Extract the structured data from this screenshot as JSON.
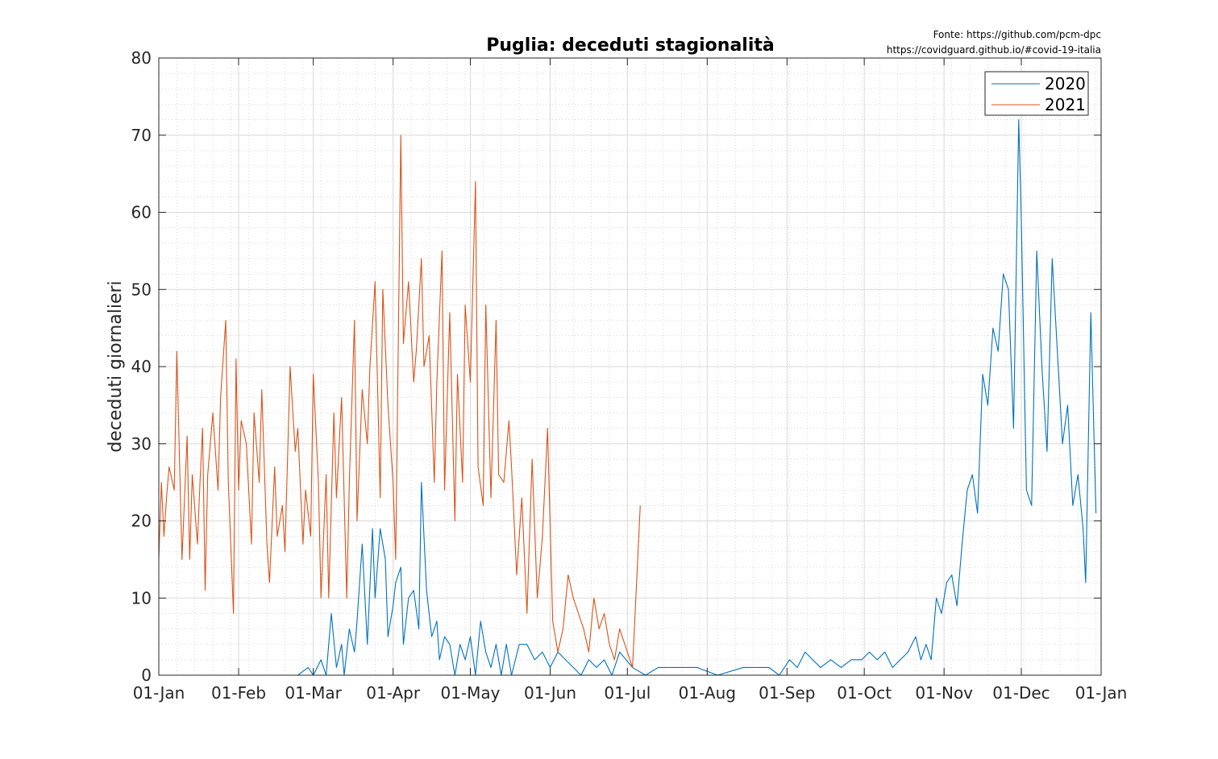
{
  "chart_data": {
    "type": "line",
    "title": "Puglia: deceduti stagionalità",
    "source_lines": [
      "Fonte: https://github.com/pcm-dpc",
      "https://covidguard.github.io/#covid-19-italia"
    ],
    "ylabel": "deceduti giornalieri",
    "xlabel": "",
    "ylim": [
      0,
      80
    ],
    "yticks": [
      0,
      10,
      20,
      30,
      40,
      50,
      60,
      70,
      80
    ],
    "xlim": [
      "2020-01-01",
      "2021-01-01"
    ],
    "xticks": [
      "2020-01-01",
      "2020-02-01",
      "2020-03-01",
      "2020-04-01",
      "2020-05-01",
      "2020-06-01",
      "2020-07-01",
      "2020-08-01",
      "2020-09-01",
      "2020-10-01",
      "2020-11-01",
      "2020-12-01",
      "2021-01-01"
    ],
    "xtick_labels": [
      "01-Jan",
      "01-Feb",
      "01-Mar",
      "01-Apr",
      "01-May",
      "01-Jun",
      "01-Jul",
      "01-Aug",
      "01-Sep",
      "01-Oct",
      "01-Nov",
      "01-Dec",
      "01-Jan"
    ],
    "grid": true,
    "minor_grid": true,
    "legend_position": "top-right",
    "series": [
      {
        "name": "2020",
        "color": "#0072BD",
        "x": [
          "2020-02-24",
          "2020-02-28",
          "2020-03-01",
          "2020-03-04",
          "2020-03-06",
          "2020-03-08",
          "2020-03-10",
          "2020-03-12",
          "2020-03-13",
          "2020-03-15",
          "2020-03-17",
          "2020-03-18",
          "2020-03-20",
          "2020-03-22",
          "2020-03-24",
          "2020-03-25",
          "2020-03-27",
          "2020-03-29",
          "2020-03-30",
          "2020-04-01",
          "2020-04-02",
          "2020-04-04",
          "2020-04-05",
          "2020-04-07",
          "2020-04-09",
          "2020-04-11",
          "2020-04-12",
          "2020-04-14",
          "2020-04-16",
          "2020-04-18",
          "2020-04-19",
          "2020-04-21",
          "2020-04-23",
          "2020-04-25",
          "2020-04-27",
          "2020-04-29",
          "2020-05-01",
          "2020-05-03",
          "2020-05-05",
          "2020-05-07",
          "2020-05-09",
          "2020-05-11",
          "2020-05-13",
          "2020-05-15",
          "2020-05-17",
          "2020-05-20",
          "2020-05-23",
          "2020-05-26",
          "2020-05-29",
          "2020-06-01",
          "2020-06-04",
          "2020-06-07",
          "2020-06-10",
          "2020-06-13",
          "2020-06-16",
          "2020-06-19",
          "2020-06-22",
          "2020-06-25",
          "2020-06-28",
          "2020-07-03",
          "2020-07-08",
          "2020-07-13",
          "2020-07-20",
          "2020-07-28",
          "2020-08-05",
          "2020-08-15",
          "2020-08-25",
          "2020-08-29",
          "2020-09-02",
          "2020-09-05",
          "2020-09-08",
          "2020-09-11",
          "2020-09-14",
          "2020-09-18",
          "2020-09-22",
          "2020-09-26",
          "2020-09-30",
          "2020-10-03",
          "2020-10-06",
          "2020-10-09",
          "2020-10-12",
          "2020-10-15",
          "2020-10-18",
          "2020-10-21",
          "2020-10-23",
          "2020-10-25",
          "2020-10-27",
          "2020-10-29",
          "2020-10-31",
          "2020-11-02",
          "2020-11-04",
          "2020-11-06",
          "2020-11-08",
          "2020-11-10",
          "2020-11-12",
          "2020-11-14",
          "2020-11-16",
          "2020-11-18",
          "2020-11-20",
          "2020-11-22",
          "2020-11-24",
          "2020-11-26",
          "2020-11-28",
          "2020-11-30",
          "2020-12-01",
          "2020-12-03",
          "2020-12-05",
          "2020-12-07",
          "2020-12-09",
          "2020-12-11",
          "2020-12-13",
          "2020-12-15",
          "2020-12-17",
          "2020-12-19",
          "2020-12-21",
          "2020-12-23",
          "2020-12-25",
          "2020-12-26",
          "2020-12-28",
          "2020-12-30"
        ],
        "values": [
          0,
          1,
          0,
          2,
          0,
          8,
          1,
          4,
          0,
          6,
          3,
          7,
          17,
          4,
          19,
          10,
          19,
          15,
          5,
          9,
          12,
          14,
          4,
          10,
          11,
          6,
          25,
          11,
          5,
          7,
          2,
          5,
          4,
          0,
          4,
          2,
          5,
          0,
          7,
          3,
          1,
          4,
          0,
          4,
          0,
          4,
          4,
          2,
          3,
          1,
          3,
          2,
          1,
          0,
          2,
          1,
          2,
          0,
          3,
          1,
          0,
          1,
          1,
          1,
          0,
          1,
          1,
          0,
          2,
          1,
          3,
          2,
          1,
          2,
          1,
          2,
          2,
          3,
          2,
          3,
          1,
          2,
          3,
          5,
          2,
          4,
          2,
          10,
          8,
          12,
          13,
          9,
          17,
          24,
          26,
          21,
          39,
          35,
          45,
          42,
          52,
          50,
          32,
          72,
          59,
          24,
          22,
          55,
          40,
          29,
          54,
          42,
          30,
          35,
          22,
          26,
          19,
          12,
          47,
          21
        ]
      },
      {
        "name": "2021",
        "color": "#D95319",
        "x": [
          "2020-01-01",
          "2020-01-02",
          "2020-01-03",
          "2020-01-04",
          "2020-01-05",
          "2020-01-07",
          "2020-01-08",
          "2020-01-10",
          "2020-01-12",
          "2020-01-13",
          "2020-01-14",
          "2020-01-16",
          "2020-01-17",
          "2020-01-18",
          "2020-01-19",
          "2020-01-20",
          "2020-01-22",
          "2020-01-24",
          "2020-01-25",
          "2020-01-27",
          "2020-01-28",
          "2020-01-30",
          "2020-01-31",
          "2020-02-01",
          "2020-02-02",
          "2020-02-04",
          "2020-02-06",
          "2020-02-07",
          "2020-02-09",
          "2020-02-10",
          "2020-02-12",
          "2020-02-13",
          "2020-02-15",
          "2020-02-16",
          "2020-02-18",
          "2020-02-19",
          "2020-02-21",
          "2020-02-23",
          "2020-02-24",
          "2020-02-26",
          "2020-02-27",
          "2020-02-29",
          "2020-03-01",
          "2020-03-03",
          "2020-03-04",
          "2020-03-06",
          "2020-03-07",
          "2020-03-09",
          "2020-03-10",
          "2020-03-12",
          "2020-03-14",
          "2020-03-15",
          "2020-03-17",
          "2020-03-18",
          "2020-03-20",
          "2020-03-22",
          "2020-03-23",
          "2020-03-25",
          "2020-03-27",
          "2020-03-28",
          "2020-03-30",
          "2020-04-01",
          "2020-04-02",
          "2020-04-04",
          "2020-04-05",
          "2020-04-07",
          "2020-04-09",
          "2020-04-10",
          "2020-04-12",
          "2020-04-13",
          "2020-04-15",
          "2020-04-17",
          "2020-04-18",
          "2020-04-20",
          "2020-04-21",
          "2020-04-23",
          "2020-04-25",
          "2020-04-26",
          "2020-04-28",
          "2020-04-29",
          "2020-05-01",
          "2020-05-03",
          "2020-05-04",
          "2020-05-06",
          "2020-05-07",
          "2020-05-09",
          "2020-05-11",
          "2020-05-12",
          "2020-05-14",
          "2020-05-16",
          "2020-05-17",
          "2020-05-19",
          "2020-05-21",
          "2020-05-23",
          "2020-05-25",
          "2020-05-27",
          "2020-05-29",
          "2020-05-31",
          "2020-06-02",
          "2020-06-04",
          "2020-06-06",
          "2020-06-08",
          "2020-06-10",
          "2020-06-12",
          "2020-06-14",
          "2020-06-16",
          "2020-06-18",
          "2020-06-20",
          "2020-06-22",
          "2020-06-24",
          "2020-06-26",
          "2020-06-28",
          "2020-06-30",
          "2020-07-03",
          "2020-07-06"
        ],
        "values": [
          15,
          25,
          18,
          23,
          27,
          24,
          42,
          15,
          31,
          15,
          26,
          17,
          25,
          32,
          11,
          26,
          34,
          24,
          36,
          46,
          25,
          8,
          41,
          24,
          33,
          30,
          17,
          34,
          25,
          37,
          17,
          12,
          27,
          18,
          22,
          16,
          40,
          29,
          32,
          17,
          24,
          18,
          39,
          25,
          10,
          26,
          10,
          34,
          23,
          36,
          10,
          25,
          46,
          20,
          37,
          30,
          40,
          51,
          23,
          50,
          35,
          25,
          15,
          70,
          43,
          51,
          38,
          42,
          54,
          40,
          44,
          25,
          38,
          55,
          24,
          47,
          20,
          39,
          25,
          48,
          38,
          64,
          27,
          22,
          48,
          23,
          46,
          26,
          25,
          33,
          27,
          13,
          23,
          8,
          28,
          10,
          18,
          32,
          7,
          3,
          6,
          13,
          10,
          8,
          6,
          3,
          10,
          6,
          8,
          4,
          2,
          6,
          4,
          1,
          22
        ]
      }
    ]
  }
}
